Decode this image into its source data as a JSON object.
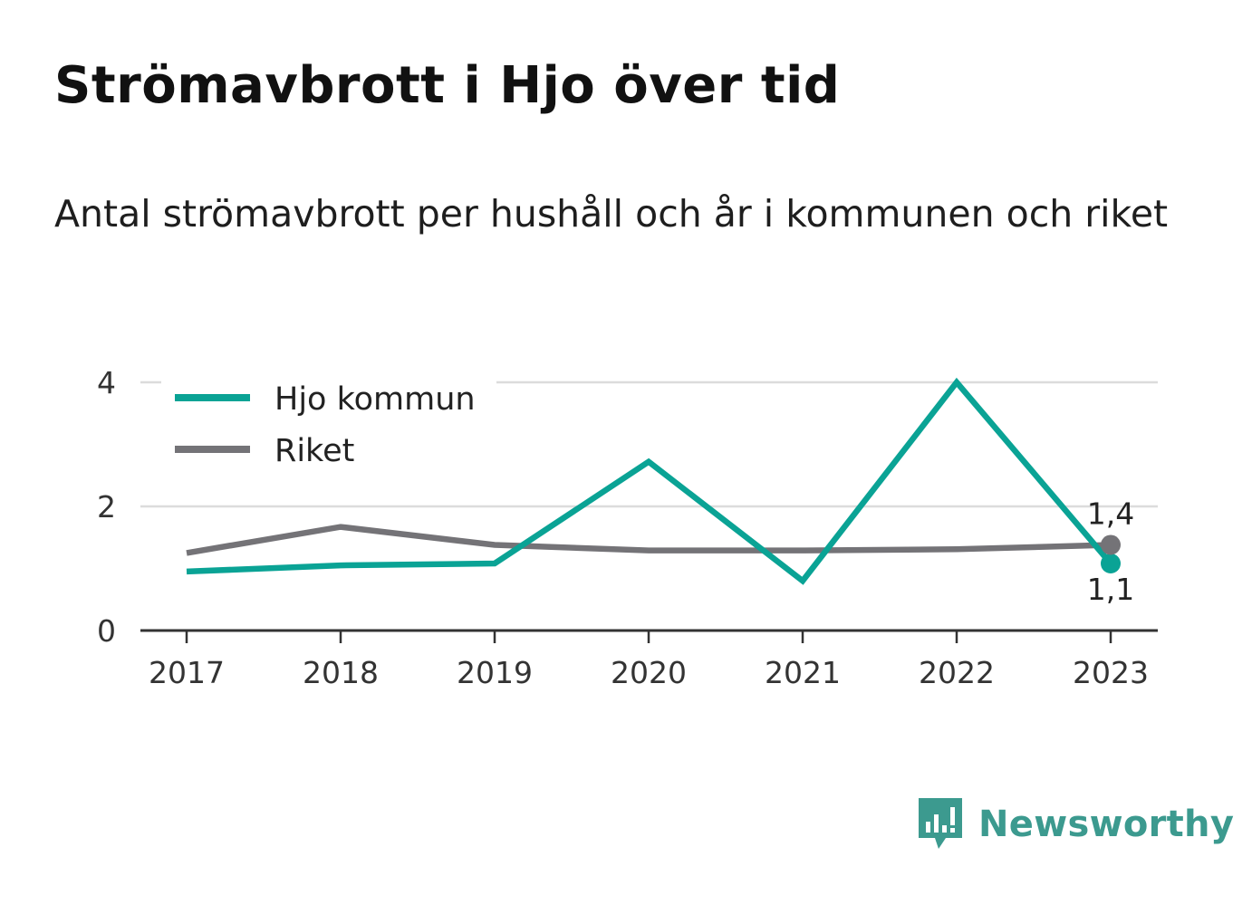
{
  "title": "Strömavbrott i Hjo över tid",
  "subtitle": "Antal strömavbrott per hushåll och år i kommunen och riket",
  "brand": {
    "name": "Newsworthy",
    "icon": "newsworthy-logo-icon",
    "color": "#3c9a8f"
  },
  "chart_data": {
    "type": "line",
    "x": [
      "2017",
      "2018",
      "2019",
      "2020",
      "2021",
      "2022",
      "2023"
    ],
    "ylim": [
      0,
      4
    ],
    "yticks": [
      "0",
      "2",
      "4"
    ],
    "grid": true,
    "legend": "top-left",
    "series": [
      {
        "name": "Hjo kommun",
        "color": "#0aa395",
        "values": [
          0.95,
          1.05,
          1.08,
          2.72,
          0.8,
          4.0,
          1.08
        ],
        "end_label": "1,1"
      },
      {
        "name": "Riket",
        "color": "#747377",
        "values": [
          1.25,
          1.67,
          1.38,
          1.29,
          1.29,
          1.31,
          1.38
        ],
        "end_label": "1,4"
      }
    ]
  }
}
